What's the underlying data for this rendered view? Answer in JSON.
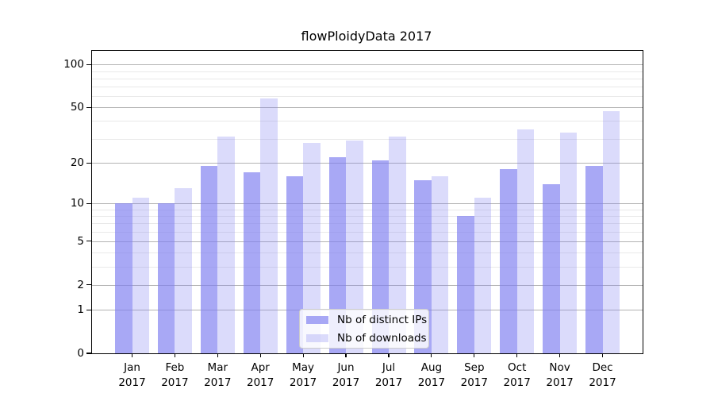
{
  "title": "flowPloidyData 2017",
  "chart_data": {
    "type": "bar",
    "title": "flowPloidyData 2017",
    "categories": [
      "Jan",
      "Feb",
      "Mar",
      "Apr",
      "May",
      "Jun",
      "Jul",
      "Aug",
      "Sep",
      "Oct",
      "Nov",
      "Dec"
    ],
    "year_label": "2017",
    "series": [
      {
        "name": "Nb of distinct IPs",
        "color": "rgba(125,125,240,0.67)",
        "values": [
          10,
          10,
          19,
          17,
          16,
          22,
          21,
          15,
          8,
          18,
          14,
          19
        ]
      },
      {
        "name": "Nb of downloads",
        "color": "rgba(125,125,240,0.28)",
        "values": [
          11,
          13,
          31,
          58,
          28,
          29,
          31,
          16,
          11,
          35,
          33,
          47
        ]
      }
    ],
    "xlabel": "",
    "ylabel": "",
    "y_scale": "log10(1+v)",
    "y_major_ticks": [
      0,
      1,
      2,
      5,
      10,
      20,
      50,
      100
    ],
    "y_tick_labels": [
      "0",
      "1",
      "2",
      "5",
      "10",
      "20",
      "50",
      "100"
    ],
    "y_minor_gridlines": [
      3,
      4,
      6,
      7,
      8,
      9,
      30,
      40,
      60,
      70,
      80,
      90
    ],
    "ylim": [
      0,
      125
    ],
    "grid": "both",
    "legend_position": "lower-center"
  },
  "colors": {
    "bar_base": "#7d7df0",
    "bar_dark_rendered": "#a8a8f5",
    "bar_light_rendered": "#dbdbfb",
    "major_grid": "#b3b3b3",
    "minor_grid": "#e9e9e9",
    "spine": "#000000",
    "background": "#ffffff"
  }
}
